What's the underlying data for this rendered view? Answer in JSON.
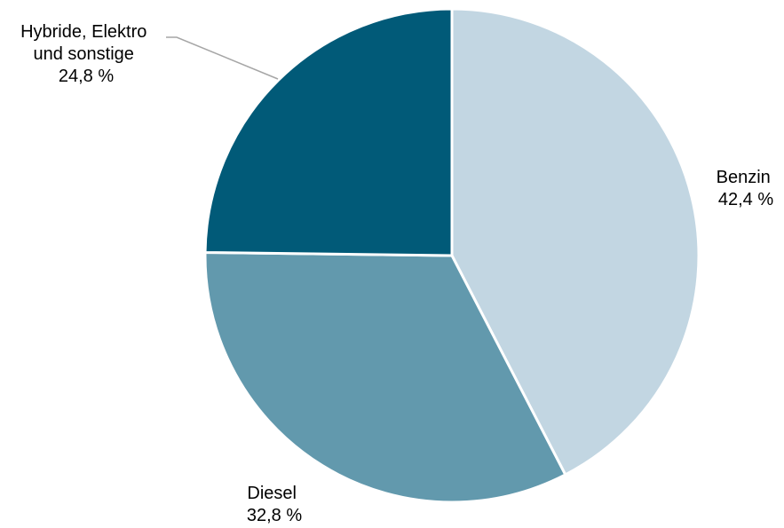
{
  "chart_data": {
    "type": "pie",
    "title": "",
    "slices": [
      {
        "label_lines": [
          "Benzin"
        ],
        "value": 42.4,
        "value_label": "42,4 %",
        "color": "#c2d6e2"
      },
      {
        "label_lines": [
          "Diesel"
        ],
        "value": 32.8,
        "value_label": "32,8 %",
        "color": "#6299ad"
      },
      {
        "label_lines": [
          "Hybride, Elektro",
          "und sonstige"
        ],
        "value": 24.8,
        "value_label": "24,8 %",
        "color": "#015a78"
      }
    ],
    "start": "12 o'clock",
    "direction": "clockwise",
    "leader_line_color": "#a6a6a6",
    "slice_border_color": "#ffffff"
  }
}
